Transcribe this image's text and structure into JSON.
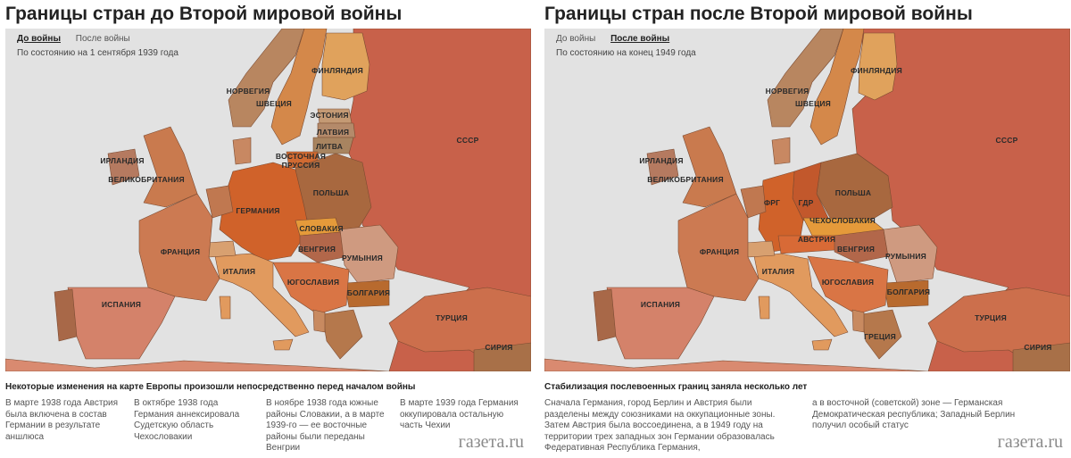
{
  "panels": [
    {
      "title": "Границы стран до Второй мировой войны",
      "tabs": [
        {
          "label": "До войны",
          "active": true
        },
        {
          "label": "После войны",
          "active": false
        }
      ],
      "date_note": "По состоянию на 1 сентября 1939 года",
      "labels": {
        "finland": "ФИНЛЯНДИЯ",
        "norway": "НОРВЕГИЯ",
        "sweden": "ШВЕЦИЯ",
        "estonia": "ЭСТОНИЯ",
        "latvia": "ЛАТВИЯ",
        "lithuania": "ЛИТВА",
        "eprussia": "ВОСТОЧНАЯ\nПРУССИЯ",
        "ussr": "СССР",
        "ireland": "ИРЛАНДИЯ",
        "uk": "ВЕЛИКОБРИТАНИЯ",
        "germany": "ГЕРМАНИЯ",
        "poland": "ПОЛЬША",
        "slovakia": "СЛОВАКИЯ",
        "hungary": "ВЕНГРИЯ",
        "romania": "РУМЫНИЯ",
        "france": "ФРАНЦИЯ",
        "italy": "ИТАЛИЯ",
        "yugoslavia": "ЮГОСЛАВИЯ",
        "bulgaria": "БОЛГАРИЯ",
        "spain": "ИСПАНИЯ",
        "turkey": "ТУРЦИЯ",
        "syria": "СИРИЯ"
      },
      "caption": "Некоторые изменения на карте Европы произошли непосредственно перед началом войны",
      "columns": [
        "В марте 1938 года Австрия была включена в состав Германии в результате аншлюса",
        "В октябре 1938 года Германия аннексировала Судетскую область Чехословакии",
        "В ноябре 1938 года южные районы Словакии, а в марте 1939-го — ее восточные районы были переданы Венгрии",
        "В марте 1939 года Германия оккупировала остальную часть Чехии"
      ]
    },
    {
      "title": "Границы стран после Второй мировой войны",
      "tabs": [
        {
          "label": "До войны",
          "active": false
        },
        {
          "label": "После войны",
          "active": true
        }
      ],
      "date_note": "По состоянию на конец 1949 года",
      "labels": {
        "finland": "ФИНЛЯНДИЯ",
        "norway": "НОРВЕГИЯ",
        "sweden": "ШВЕЦИЯ",
        "ussr": "СССР",
        "ireland": "ИРЛАНДИЯ",
        "uk": "ВЕЛИКОБРИТАНИЯ",
        "frg": "ФРГ",
        "gdr": "ГДР",
        "poland": "ПОЛЬША",
        "czechoslovakia": "ЧЕХОСЛОВАКИЯ",
        "austria": "АВСТРИЯ",
        "hungary": "ВЕНГРИЯ",
        "romania": "РУМЫНИЯ",
        "france": "ФРАНЦИЯ",
        "italy": "ИТАЛИЯ",
        "yugoslavia": "ЮГОСЛАВИЯ",
        "bulgaria": "БОЛГАРИЯ",
        "spain": "ИСПАНИЯ",
        "turkey": "ТУРЦИЯ",
        "syria": "СИРИЯ",
        "greece": "ГРЕЦИЯ"
      },
      "caption": "Стабилизация послевоенных границ заняла несколько лет",
      "columns": [
        "Сначала Германия, город Берлин и Австрия были разделены между союзниками на оккупационные зоны. Затем Австрия была воссоединена, а в 1949 году на территории трех западных зон Германии образовалась Федеративная Республика Германия,",
        "а в восточной (советской) зоне — Германская Демократическая республика; Западный Берлин получил особый статус"
      ]
    }
  ],
  "brand": "газета.ru",
  "colors": {
    "sea": "#e2e2e2",
    "ussr": "#c8614a",
    "germany": "#d0622a",
    "poland": "#a8683f",
    "scandinavia": "#c08f60",
    "finland": "#e0a25c",
    "france": "#cc7a52",
    "spain": "#d4826a",
    "italy": "#e19a5e",
    "yugoslavia": "#d97545",
    "bulgaria": "#b86a2e",
    "romania": "#cf9a80",
    "uk": "#c97a4e",
    "turkey": "#cc6f4c",
    "baltics": "#a88460"
  }
}
